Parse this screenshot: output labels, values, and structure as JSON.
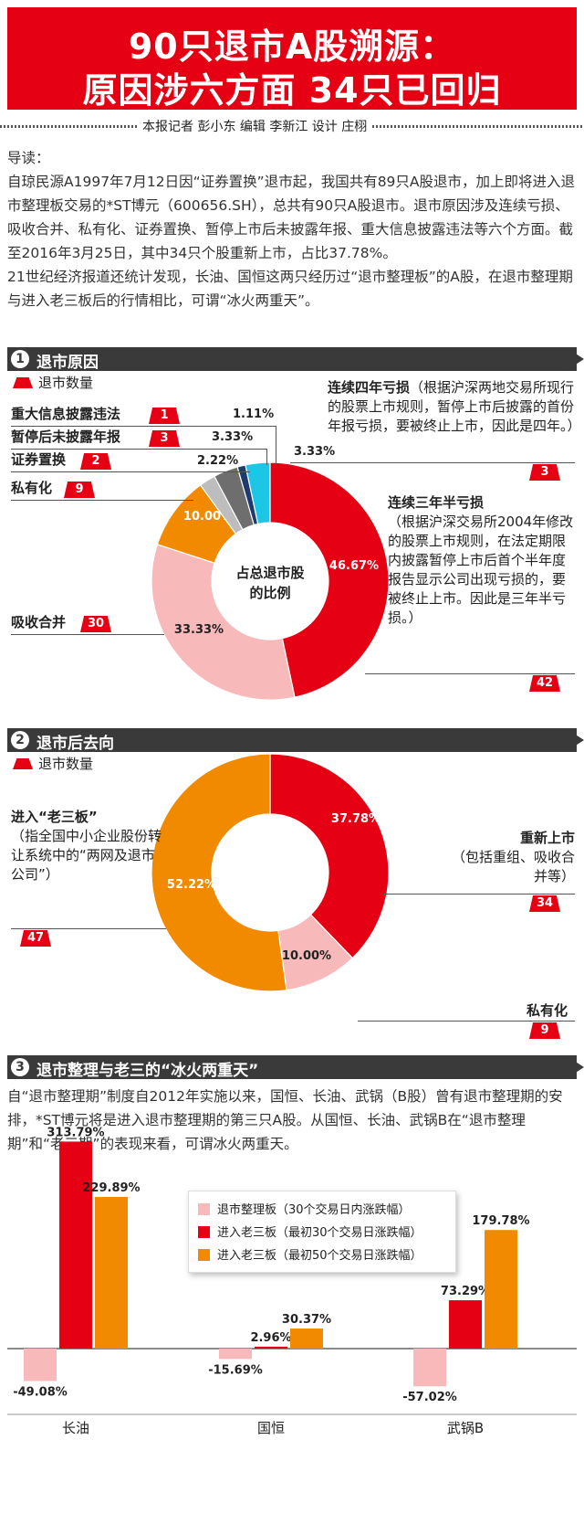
{
  "header": {
    "title_line1": "90只退市A股溯源：",
    "title_line2": "原因涉六方面  34只已回归",
    "credits": "本报记者  彭小东    编辑  李新江    设计  庄栩"
  },
  "intro": {
    "p1": "导读：",
    "p2": "自琼民源A1997年7月12日因“证券置换”退市起，我国共有89只A股退市，加上即将进入退市整理板交易的*ST博元（600656.SH），总共有90只A股退市。退市原因涉及连续亏损、吸收合并、私有化、证券置换、暂停上市后未披露年报、重大信息披露违法等六个方面。截至2016年3月25日，其中34只个股重新上市，占比37.78%。",
    "p3": "21世纪经济报道还统计发现，长油、国恒这两只经历过“退市整理板”的A股，在退市整理期与进入老三板后的行情相比，可谓“冰火两重天”。"
  },
  "section1": {
    "num": "1",
    "title": "退市原因",
    "legend": "退市数量",
    "center_label": [
      "占总退市股",
      "的比例"
    ],
    "callouts": {
      "info": "重大信息披露违法",
      "suspend": "暂停后未披露年报",
      "swap": "证券置换",
      "private": "私有化",
      "merge": "吸收合并",
      "four_title": "连续四年亏损",
      "four_note": "（根据沪深两地交易所现行的股票上市规则，暂停上市后披露的首份年报亏损，要被终止上市，因此是四年。）",
      "three_title": "连续三年半亏损",
      "three_note": "（根据沪深交易所2004年修改的股票上市规则，在法定期限内披露暂停上市后首个半年度报告显示公司出现亏损的，要被终止上市。因此是三年半亏损。）"
    }
  },
  "section2": {
    "num": "2",
    "title": "退市后去向",
    "legend": "退市数量",
    "relist_title": "重新上市",
    "relist_note": "（包括重组、吸收合并等）",
    "private_title": "私有化",
    "oldboard_title": "进入“老三板”",
    "oldboard_note": "（指全国中小企业股份转让系统中的“两网及退市公司”）"
  },
  "section3": {
    "num": "3",
    "title": "退市整理与老三的“冰火两重天”",
    "text": "自“退市整理期”制度自2012年实施以来，国恒、长油、武锅（B股）曾有退市整理期的安排，*ST博元将是进入退市整理期的第三只A股。从国恒、长油、武锅B在“退市整理期”和“老三期”的表现来看，可谓冰火两重天。"
  },
  "colors": {
    "red": "#e50013",
    "pink": "#f7b9b9",
    "orange": "#f28a00",
    "cyan": "#1ec6e6",
    "navy": "#1f3a6e",
    "darkgray": "#6e6e6e",
    "lightgray": "#bdbdbd",
    "bar_dark": "#3a3a3a"
  },
  "chart_data": [
    {
      "type": "pie",
      "subtype": "donut",
      "legend": "退市数量",
      "slices": [
        {
          "name": "连续三年半亏损",
          "count": "42",
          "percent": 46.67,
          "label": "46.67%",
          "color": "#e50013"
        },
        {
          "name": "吸收合并",
          "count": "30",
          "percent": 33.33,
          "label": "33.33%",
          "color": "#f7b9b9"
        },
        {
          "name": "私有化",
          "count": "9",
          "percent": 10.0,
          "label": "10.00%",
          "color": "#f28a00"
        },
        {
          "name": "证券置换",
          "count": "2",
          "percent": 2.22,
          "label": "2.22%",
          "color": "#bdbdbd"
        },
        {
          "name": "暂停后未披露年报",
          "count": "3",
          "percent": 3.33,
          "label": "3.33%",
          "color": "#6e6e6e"
        },
        {
          "name": "重大信息披露违法",
          "count": "1",
          "percent": 1.11,
          "label": "1.11%",
          "color": "#1f3a6e"
        },
        {
          "name": "连续四年亏损",
          "count": "3",
          "percent": 3.33,
          "label": "3.33%",
          "color": "#1ec6e6"
        }
      ]
    },
    {
      "type": "pie",
      "subtype": "donut",
      "legend": "退市数量",
      "slices": [
        {
          "name": "重新上市",
          "count": "34",
          "percent": 37.78,
          "label": "37.78%",
          "color": "#e50013"
        },
        {
          "name": "私有化",
          "count": "9",
          "percent": 10.0,
          "label": "10.00%",
          "color": "#f7b9b9"
        },
        {
          "name": "进入“老三板”",
          "count": "47",
          "percent": 52.22,
          "label": "52.22%",
          "color": "#f28a00"
        }
      ]
    },
    {
      "type": "bar",
      "categories": [
        "长油",
        "国恒",
        "武锅B"
      ],
      "series": [
        {
          "name": "退市整理板（30个交易日内涨跌幅）",
          "color": "#f7b9b9",
          "values": [
            -49.08,
            -15.69,
            -57.02
          ],
          "labels": [
            "-49.08%",
            "-15.69%",
            "-57.02%"
          ]
        },
        {
          "name": "进入老三板（最初30个交易日涨跌幅）",
          "color": "#e50013",
          "values": [
            313.79,
            2.96,
            73.29
          ],
          "labels": [
            "313.79%",
            "2.96%",
            "73.29%"
          ]
        },
        {
          "name": "进入老三板（最初50个交易日涨跌幅）",
          "color": "#f28a00",
          "values": [
            229.89,
            30.37,
            179.78
          ],
          "labels": [
            "229.89%",
            "30.37%",
            "179.78%"
          ]
        }
      ],
      "ylim": [
        -70,
        330
      ]
    }
  ]
}
